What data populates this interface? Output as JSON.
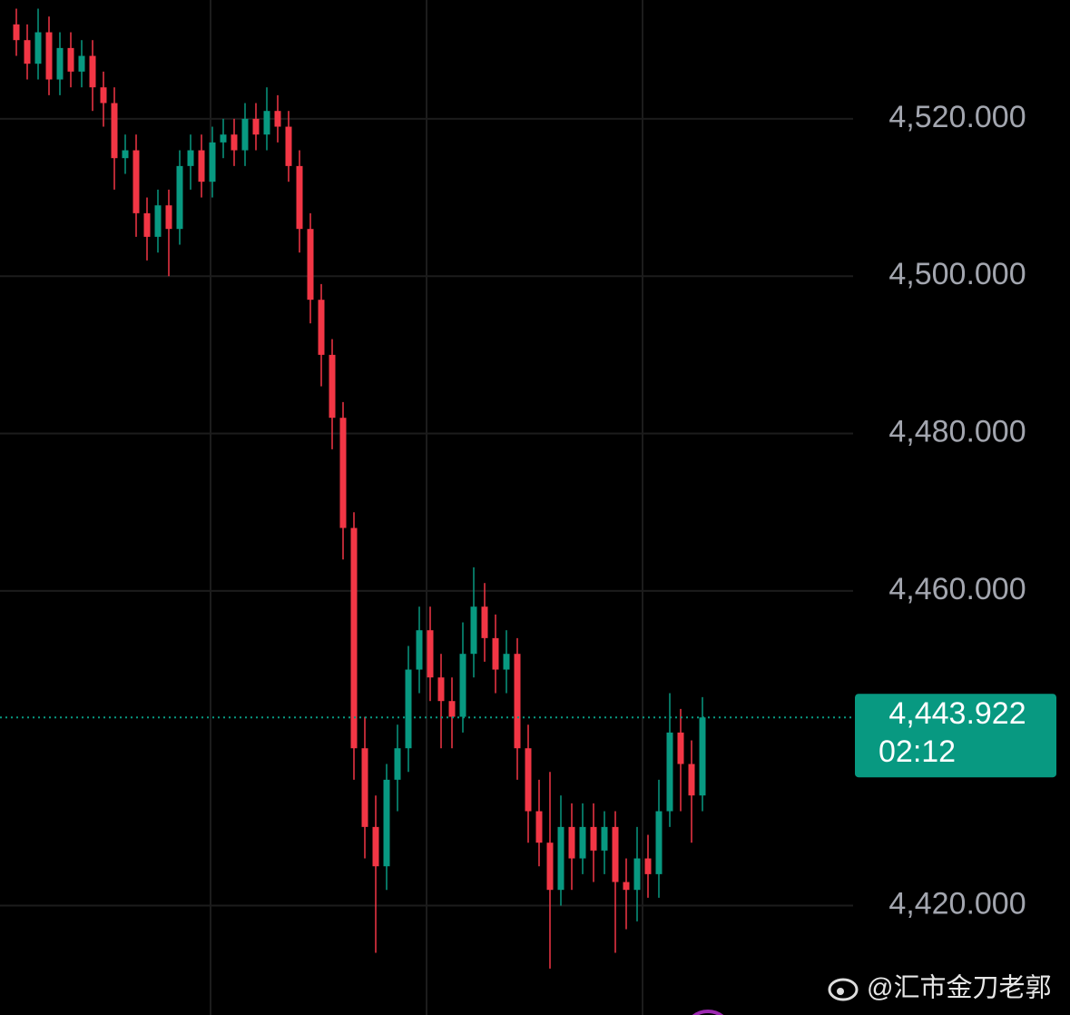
{
  "chart_data": {
    "type": "candlestick",
    "up_color": "#089981",
    "down_color": "#f23645",
    "grid": true,
    "ylim": [
      4406.1,
      4535.1
    ],
    "yticks": [
      {
        "value": 4420,
        "label": "4,420.000"
      },
      {
        "value": 4460,
        "label": "4,460.000"
      },
      {
        "value": 4480,
        "label": "4,480.000"
      },
      {
        "value": 4500,
        "label": "4,500.000"
      },
      {
        "value": 4520,
        "label": "4,520.000"
      }
    ],
    "open": [
      4532,
      4530,
      4527,
      4531,
      4525,
      4529,
      4526,
      4528,
      4524,
      4522,
      4515,
      4516,
      4508,
      4505,
      4509,
      4506,
      4514,
      4516,
      4512,
      4517,
      4518,
      4516,
      4520,
      4518,
      4521,
      4519,
      4514,
      4506,
      4497,
      4490,
      4482,
      4468,
      4440,
      4430,
      4425,
      4436,
      4440,
      4450,
      4455,
      4449,
      4446,
      4444,
      4452,
      4458,
      4454,
      4450,
      4452,
      4440,
      4432,
      4428,
      4422,
      4430,
      4426,
      4430,
      4427,
      4430,
      4423,
      4422,
      4426,
      4424,
      4432,
      4442,
      4438,
      4434
    ],
    "high": [
      4534,
      4532,
      4534,
      4533,
      4531,
      4531,
      4530,
      4530,
      4526,
      4524,
      4518,
      4518,
      4510,
      4511,
      4511,
      4516,
      4518,
      4518,
      4519,
      4520,
      4520,
      4522,
      4522,
      4524,
      4523,
      4521,
      4516,
      4508,
      4499,
      4492,
      4484,
      4470,
      4444,
      4434,
      4438,
      4443,
      4453,
      4458,
      4458,
      4452,
      4449,
      4456,
      4463,
      4461,
      4457,
      4455,
      4454,
      4443,
      4436,
      4437,
      4434,
      4433,
      4433,
      4433,
      4432,
      4432,
      4426,
      4430,
      4429,
      4436,
      4447,
      4445,
      4441,
      4446.5
    ],
    "low": [
      4528,
      4525,
      4525,
      4523,
      4523,
      4524,
      4524,
      4521,
      4519,
      4511,
      4513,
      4505,
      4502,
      4503,
      4500,
      4504,
      4511,
      4510,
      4510,
      4515,
      4514,
      4514,
      4516,
      4516,
      4517,
      4512,
      4503,
      4494,
      4486,
      4478,
      4464,
      4436,
      4426,
      4414,
      4422,
      4432,
      4437,
      4447,
      4446,
      4440,
      4440,
      4442,
      4449,
      4451,
      4447,
      4447,
      4436,
      4428,
      4425,
      4412,
      4420,
      4422,
      4424,
      4423,
      4424,
      4414,
      4417,
      4418,
      4421,
      4421,
      4430,
      4432,
      4428,
      4432
    ],
    "close": [
      4530,
      4527,
      4531,
      4525,
      4529,
      4526,
      4528,
      4524,
      4522,
      4515,
      4516,
      4508,
      4505,
      4509,
      4506,
      4514,
      4516,
      4512,
      4517,
      4518,
      4516,
      4520,
      4518,
      4521,
      4519,
      4514,
      4506,
      4497,
      4490,
      4482,
      4468,
      4440,
      4430,
      4425,
      4436,
      4440,
      4450,
      4455,
      4449,
      4446,
      4444,
      4452,
      4458,
      4454,
      4450,
      4452,
      4440,
      4432,
      4428,
      4422,
      4430,
      4426,
      4430,
      4427,
      4430,
      4423,
      4422,
      4426,
      4424,
      4432,
      4442,
      4438,
      4434,
      4443.922
    ],
    "last_price": {
      "value": 4443.922,
      "label": "4,443.922",
      "countdown": "02:12"
    },
    "watermark": "@汇市金刀老郭"
  }
}
